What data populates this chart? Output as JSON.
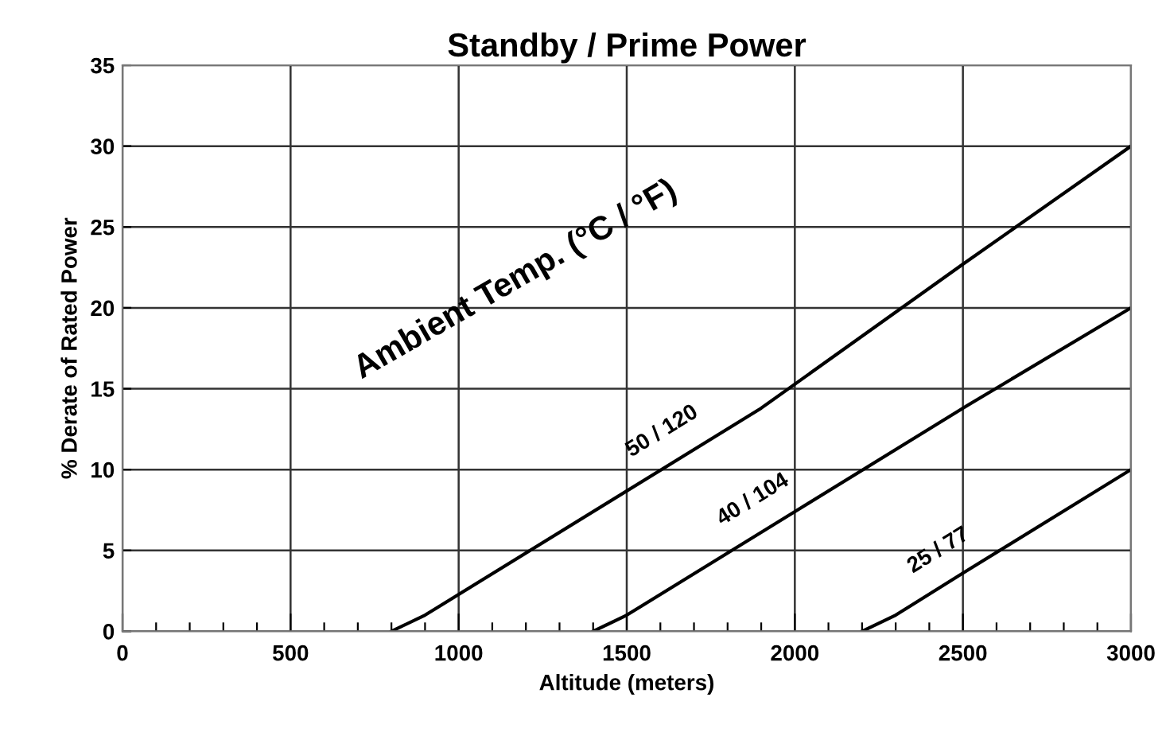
{
  "chart_data": {
    "type": "line",
    "title": "Standby / Prime Power",
    "xlabel": "Altitude (meters)",
    "ylabel": "% Derate of Rated Power",
    "xlim": [
      0,
      3000
    ],
    "ylim": [
      0,
      35
    ],
    "xticks": [
      0,
      {
        "value": 100,
        "label": null
      },
      {
        "value": 200,
        "label": null
      },
      {
        "value": 300,
        "label": null
      },
      {
        "value": 400,
        "label": null
      },
      500,
      {
        "value": 600,
        "label": null
      },
      {
        "value": 700,
        "label": null
      },
      {
        "value": 800,
        "label": null
      },
      {
        "value": 900,
        "label": null
      },
      1000,
      {
        "value": 1100,
        "label": null
      },
      {
        "value": 1200,
        "label": null
      },
      {
        "value": 1300,
        "label": null
      },
      {
        "value": 1400,
        "label": null
      },
      1500,
      {
        "value": 1600,
        "label": null
      },
      {
        "value": 1700,
        "label": null
      },
      {
        "value": 1800,
        "label": null
      },
      {
        "value": 1900,
        "label": null
      },
      2000,
      {
        "value": 2100,
        "label": null
      },
      {
        "value": 2200,
        "label": null
      },
      {
        "value": 2300,
        "label": null
      },
      {
        "value": 2400,
        "label": null
      },
      2500,
      {
        "value": 2600,
        "label": null
      },
      {
        "value": 2700,
        "label": null
      },
      {
        "value": 2800,
        "label": null
      },
      {
        "value": 2900,
        "label": null
      },
      3000
    ],
    "yticks": [
      0,
      5,
      10,
      15,
      20,
      25,
      30,
      35
    ],
    "grid": true,
    "legend": false,
    "marker": "none",
    "line_style": "solid",
    "annotations": [
      "Ambient Temp. (°C / °F)"
    ],
    "series": [
      {
        "name": "50 / 120",
        "color": "#000000",
        "x": [
          800,
          900,
          1900,
          2500,
          3000
        ],
        "values": [
          0,
          1,
          13.8,
          22.7,
          30
        ]
      },
      {
        "name": "40 / 104",
        "color": "#000000",
        "x": [
          1400,
          1500,
          2000,
          2500,
          3000
        ],
        "values": [
          0,
          1,
          7.4,
          13.8,
          20
        ]
      },
      {
        "name": "25 / 77",
        "color": "#000000",
        "x": [
          2200,
          2300,
          2500,
          3000
        ],
        "values": [
          0,
          1,
          3.6,
          10
        ]
      }
    ]
  }
}
